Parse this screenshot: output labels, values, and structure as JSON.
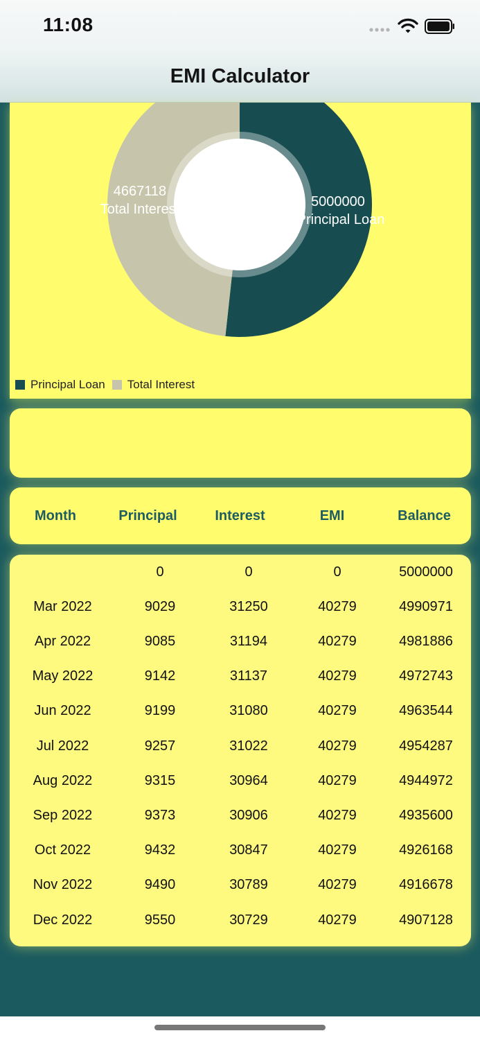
{
  "status": {
    "time": "11:08"
  },
  "nav": {
    "title": "EMI Calculator"
  },
  "chart_data": {
    "type": "pie",
    "donut": true,
    "slices": [
      {
        "label": "Principal Loan",
        "value": 5000000,
        "color": "#174d50"
      },
      {
        "label": "Total Interest",
        "value": 4667118,
        "color": "#c6c5ab"
      }
    ],
    "legend": "bottom-left"
  },
  "chart_labels": {
    "principal_value": "5000000",
    "principal_name": "Principal Loan",
    "interest_value": "4667118",
    "interest_name": "Total Interest"
  },
  "legend": [
    {
      "label": "Principal Loan",
      "color": "#174d50"
    },
    {
      "label": "Total Interest",
      "color": "#c6c5ab"
    }
  ],
  "table": {
    "headers": [
      "Month",
      "Principal",
      "Interest",
      "EMI",
      "Balance"
    ],
    "rows": [
      [
        "",
        "0",
        "0",
        "0",
        "5000000"
      ],
      [
        "Mar 2022",
        "9029",
        "31250",
        "40279",
        "4990971"
      ],
      [
        "Apr 2022",
        "9085",
        "31194",
        "40279",
        "4981886"
      ],
      [
        "May 2022",
        "9142",
        "31137",
        "40279",
        "4972743"
      ],
      [
        "Jun 2022",
        "9199",
        "31080",
        "40279",
        "4963544"
      ],
      [
        "Jul 2022",
        "9257",
        "31022",
        "40279",
        "4954287"
      ],
      [
        "Aug 2022",
        "9315",
        "30964",
        "40279",
        "4944972"
      ],
      [
        "Sep 2022",
        "9373",
        "30906",
        "40279",
        "4935600"
      ],
      [
        "Oct 2022",
        "9432",
        "30847",
        "40279",
        "4926168"
      ],
      [
        "Nov 2022",
        "9490",
        "30789",
        "40279",
        "4916678"
      ],
      [
        "Dec 2022",
        "9550",
        "30729",
        "40279",
        "4907128"
      ]
    ]
  }
}
